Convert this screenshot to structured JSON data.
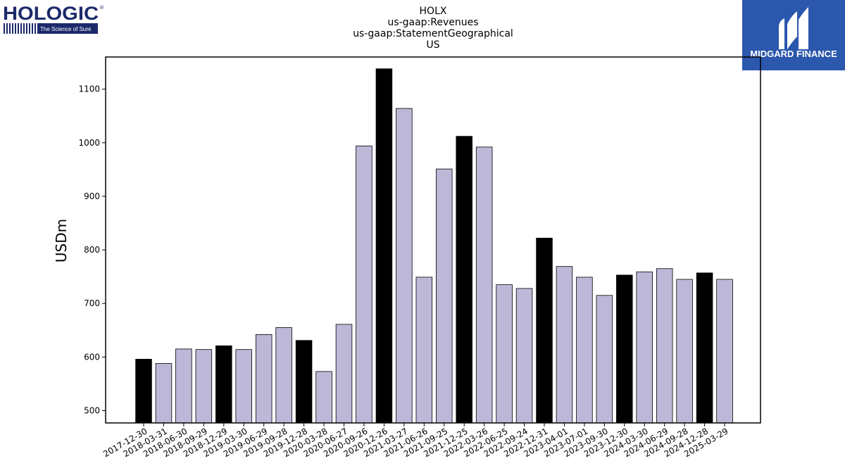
{
  "logos": {
    "hologic": {
      "name": "HOLOGIC",
      "tagline": "The Science of Sure",
      "color": "#1c2a6b"
    },
    "midgard": {
      "name": "MIDGARD FINANCE",
      "color": "#2b57ad"
    }
  },
  "chart_data": {
    "type": "bar",
    "title": [
      "HOLX",
      "us-gaap:Revenues",
      "us-gaap:StatementGeographical",
      "US"
    ],
    "xlabel": "",
    "ylabel": "USDm",
    "ylim": [
      477,
      1160
    ],
    "yticks": [
      500,
      600,
      700,
      800,
      900,
      1000,
      1100
    ],
    "grid": false,
    "colors": {
      "q4": "#000000",
      "other": "#bdb8d8",
      "edge": "#000000"
    },
    "categories": [
      "2017-12-30",
      "2018-03-31",
      "2018-06-30",
      "2018-09-29",
      "2018-12-29",
      "2019-03-30",
      "2019-06-29",
      "2019-09-28",
      "2019-12-28",
      "2020-03-28",
      "2020-06-27",
      "2020-09-26",
      "2020-12-26",
      "2021-03-27",
      "2021-06-26",
      "2021-09-25",
      "2021-12-25",
      "2022-03-26",
      "2022-06-25",
      "2022-09-24",
      "2022-12-31",
      "2023-04-01",
      "2023-07-01",
      "2023-09-30",
      "2023-12-30",
      "2024-03-30",
      "2024-06-29",
      "2024-09-28",
      "2024-12-28",
      "2025-03-29"
    ],
    "values": [
      596,
      588,
      615,
      614,
      621,
      614,
      642,
      655,
      631,
      573,
      661,
      994,
      1138,
      1064,
      749,
      951,
      1012,
      992,
      735,
      728,
      822,
      769,
      749,
      715,
      753,
      759,
      765,
      745,
      757,
      745
    ],
    "highlight": [
      true,
      false,
      false,
      false,
      true,
      false,
      false,
      false,
      true,
      false,
      false,
      false,
      true,
      false,
      false,
      false,
      true,
      false,
      false,
      false,
      true,
      false,
      false,
      false,
      true,
      false,
      false,
      false,
      true,
      false
    ]
  }
}
